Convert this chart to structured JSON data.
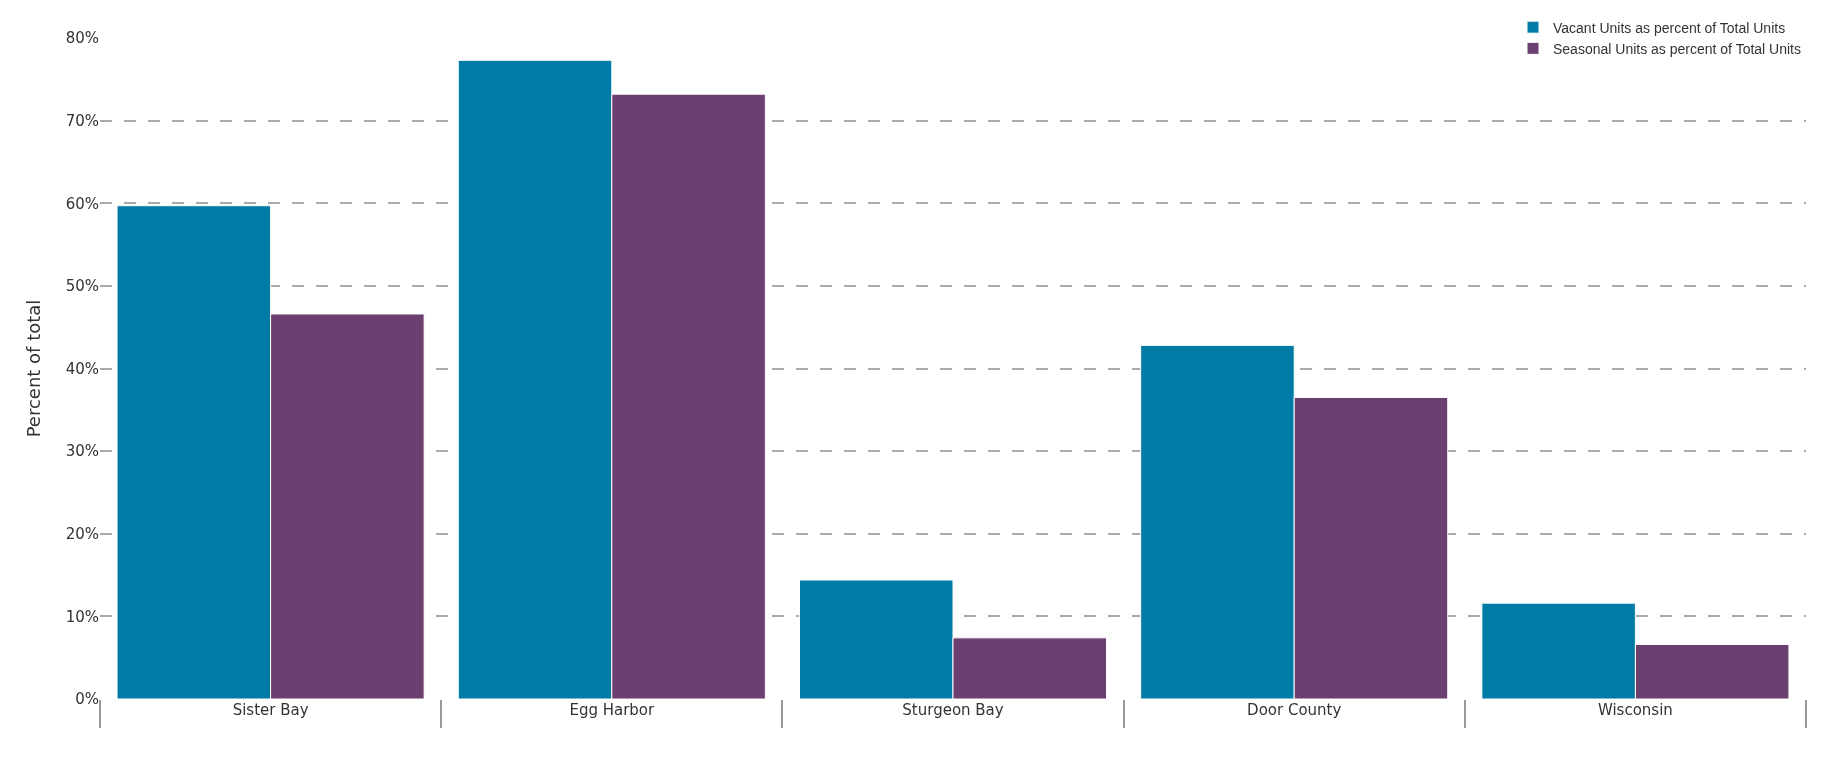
{
  "chart_data": {
    "type": "bar",
    "ylabel": "Percent of total",
    "categories": [
      "Sister Bay",
      "Egg Harbor",
      "Sturgeon Bay",
      "Door County",
      "Wisconsin"
    ],
    "series": [
      {
        "name": "Vacant Units as percent of Total Units",
        "color": "#007ba5",
        "values": [
          59.7,
          77.3,
          14.4,
          42.8,
          11.6
        ]
      },
      {
        "name": "Seasonal Units as percent of Total Units",
        "color": "#6b3f6f",
        "values": [
          46.6,
          73.2,
          7.4,
          36.5,
          6.6
        ]
      }
    ],
    "ylim": [
      0,
      80
    ],
    "yticks": [
      {
        "value": 0,
        "label": "0%"
      },
      {
        "value": 10,
        "label": "10%"
      },
      {
        "value": 20,
        "label": "20%"
      },
      {
        "value": 30,
        "label": "30%"
      },
      {
        "value": 40,
        "label": "40%"
      },
      {
        "value": 50,
        "label": "50%"
      },
      {
        "value": 60,
        "label": "60%"
      },
      {
        "value": 70,
        "label": "70%"
      },
      {
        "value": 80,
        "label": "80%"
      }
    ],
    "grid": "y",
    "legend": "top right"
  }
}
